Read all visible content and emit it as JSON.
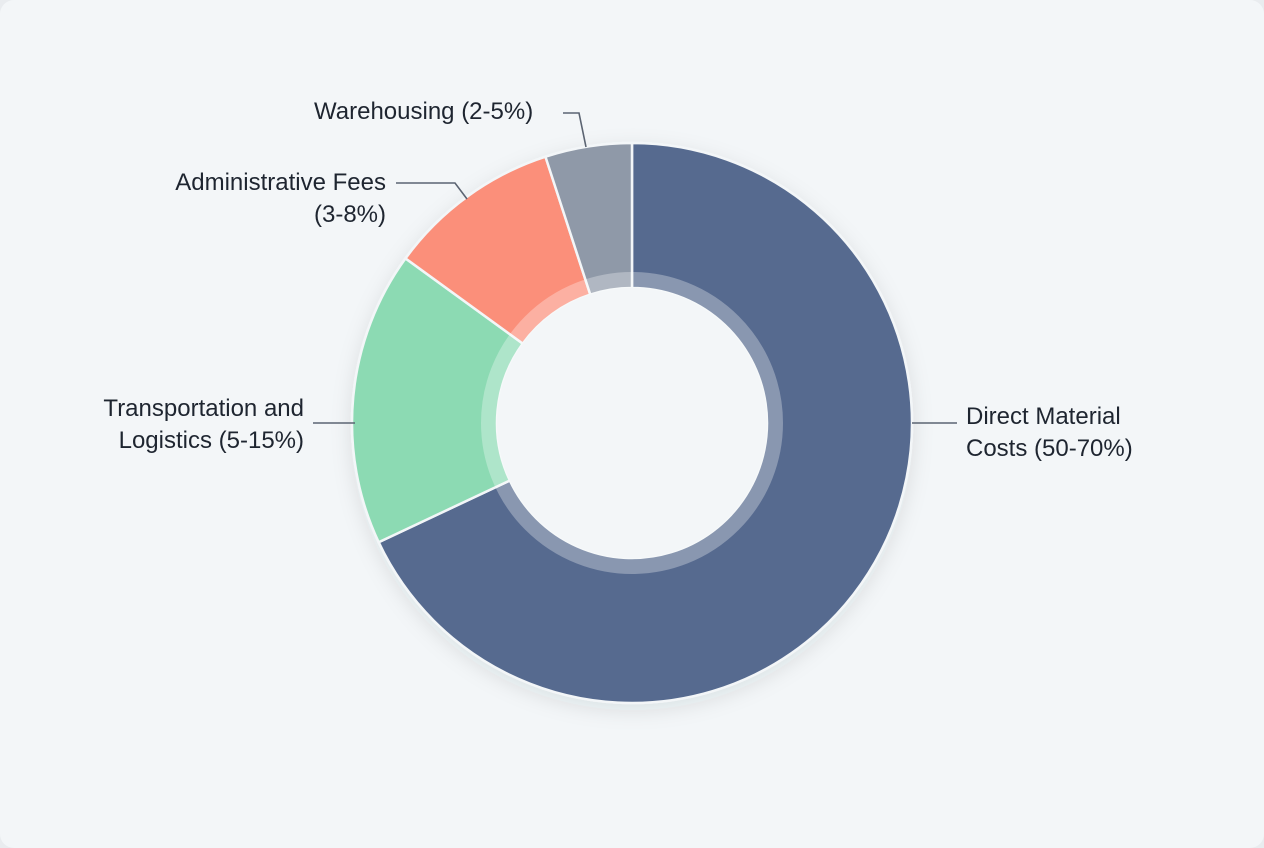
{
  "chart_data": {
    "type": "pie",
    "subtype": "donut",
    "title": "",
    "categories": [
      "Direct Material Costs (50-70%)",
      "Transportation and Logistics (5-15%)",
      "Administrative Fees (3-8%)",
      "Warehousing (2-5%)"
    ],
    "values": [
      68,
      17,
      10,
      5
    ],
    "colors": [
      "#566b8f",
      "#8cdab3",
      "#fb8f7a",
      "#8f99a8"
    ],
    "legend": "none (leader-line labels)",
    "start_angle_deg": 0,
    "direction": "clockwise"
  },
  "labels": {
    "direct": {
      "line1": "Direct Material",
      "line2": "Costs (50-70%)"
    },
    "transport": {
      "line1": "Transportation and",
      "line2": "Logistics (5-15%)"
    },
    "admin": {
      "line1": "Administrative Fees",
      "line2": "(3-8%)"
    },
    "warehousing": {
      "line1": "Warehousing (2-5%)"
    }
  }
}
